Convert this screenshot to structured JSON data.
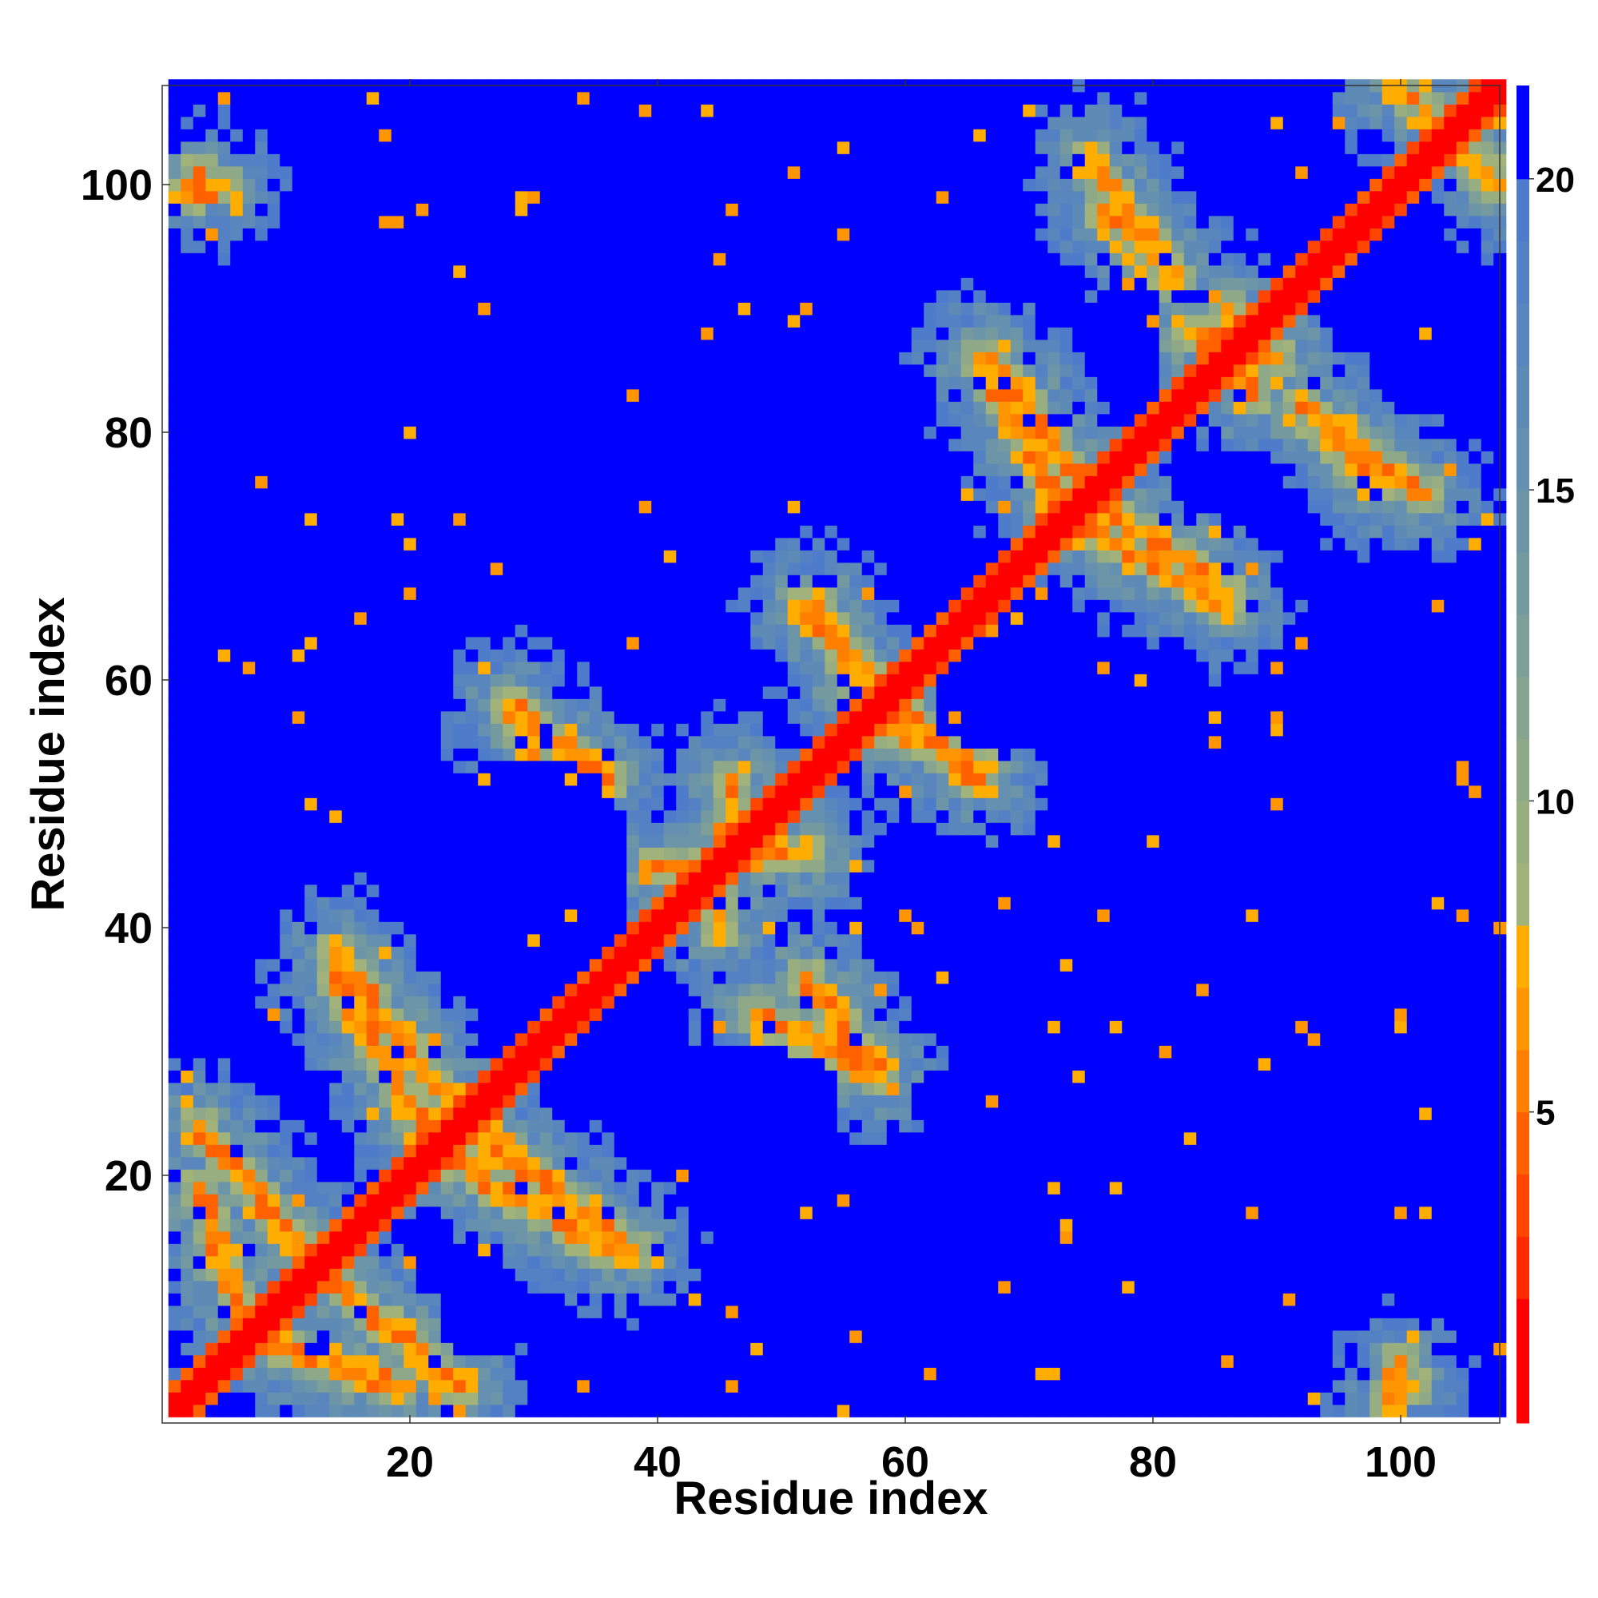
{
  "chart_data": {
    "type": "heatmap",
    "title": "",
    "xlabel": "Residue index",
    "ylabel": "Residue index",
    "n_residues": 108,
    "xlim": [
      1,
      108
    ],
    "ylim": [
      1,
      108
    ],
    "x_ticks": [
      20,
      40,
      60,
      80,
      100
    ],
    "y_ticks": [
      20,
      40,
      60,
      80,
      100
    ],
    "colorbar": {
      "ticks": [
        5,
        10,
        15,
        20
      ],
      "range": [
        0,
        21.5
      ],
      "levels": [
        {
          "max": 2,
          "color": "#ff0000"
        },
        {
          "max": 3,
          "color": "#ff2a00"
        },
        {
          "max": 4,
          "color": "#ff4500"
        },
        {
          "max": 5,
          "color": "#ff6000"
        },
        {
          "max": 6,
          "color": "#ff7f00"
        },
        {
          "max": 7,
          "color": "#ff9500"
        },
        {
          "max": 8,
          "color": "#ffad00"
        },
        {
          "max": 9,
          "color": "#a2b27b"
        },
        {
          "max": 10,
          "color": "#98ad80"
        },
        {
          "max": 11,
          "color": "#8fa988"
        },
        {
          "max": 12,
          "color": "#86a48f"
        },
        {
          "max": 13,
          "color": "#7d9f98"
        },
        {
          "max": 14,
          "color": "#749aa0"
        },
        {
          "max": 15,
          "color": "#6c95a8"
        },
        {
          "max": 16,
          "color": "#6590af"
        },
        {
          "max": 17,
          "color": "#5e8bb6"
        },
        {
          "max": 18,
          "color": "#5886bd"
        },
        {
          "max": 19,
          "color": "#5381c4"
        },
        {
          "max": 20,
          "color": "#4e7cca"
        },
        {
          "max": 21.5,
          "color": "#0000ff"
        }
      ]
    },
    "contact_segments": [
      {
        "a": [
          3,
          24
        ],
        "b": [
          13,
          12
        ]
      },
      {
        "a": [
          7,
          7
        ],
        "b": [
          19,
          3
        ]
      },
      {
        "a": [
          14,
          38
        ],
        "b": [
          23,
          26
        ]
      },
      {
        "a": [
          22,
          22
        ],
        "b": [
          36,
          14
        ]
      },
      {
        "a": [
          28,
          58
        ],
        "b": [
          33,
          48
        ]
      },
      {
        "a": [
          40,
          45
        ],
        "b": [
          52,
          46
        ]
      },
      {
        "a": [
          52,
          36
        ],
        "b": [
          58,
          28
        ]
      },
      {
        "a": [
          53,
          66
        ],
        "b": [
          57,
          57
        ]
      },
      {
        "a": [
          60,
          57
        ],
        "b": [
          66,
          52
        ]
      },
      {
        "a": [
          67,
          86
        ],
        "b": [
          75,
          75
        ]
      },
      {
        "a": [
          75,
          72
        ],
        "b": [
          86,
          66
        ]
      },
      {
        "a": [
          76,
          98
        ],
        "b": [
          82,
          92
        ]
      },
      {
        "a": [
          83,
          88
        ],
        "b": [
          90,
          86
        ]
      },
      {
        "a": [
          92,
          82
        ],
        "b": [
          102,
          75
        ]
      },
      {
        "a": [
          100,
          108
        ],
        "b": [
          108,
          100
        ]
      },
      {
        "a": [
          99,
          2
        ],
        "b": [
          101,
          3
        ]
      },
      {
        "a": [
          2,
          99
        ],
        "b": [
          5,
          100
        ]
      }
    ],
    "blue_voids": [
      {
        "cx": 30,
        "cy": 45,
        "rx": 8,
        "ry": 9
      },
      {
        "cx": 45,
        "cy": 26,
        "rx": 10,
        "ry": 5
      },
      {
        "cx": 73,
        "cy": 26,
        "rx": 13,
        "ry": 4
      },
      {
        "cx": 97,
        "cy": 26,
        "rx": 9,
        "ry": 4
      },
      {
        "cx": 83,
        "cy": 45,
        "rx": 5,
        "ry": 7
      },
      {
        "cx": 98,
        "cy": 48,
        "rx": 8,
        "ry": 8
      },
      {
        "cx": 86,
        "cy": 76,
        "rx": 5,
        "ry": 3
      },
      {
        "cx": 78,
        "cy": 87,
        "rx": 3,
        "ry": 6
      },
      {
        "cx": 102,
        "cy": 87,
        "rx": 5,
        "ry": 6
      },
      {
        "cx": 45,
        "cy": 80,
        "rx": 8,
        "ry": 5
      },
      {
        "cx": 8,
        "cy": 50,
        "rx": 5,
        "ry": 6
      },
      {
        "cx": 28,
        "cy": 78,
        "rx": 4,
        "ry": 6
      },
      {
        "cx": 12,
        "cy": 88,
        "rx": 6,
        "ry": 5
      },
      {
        "cx": 27,
        "cy": 92,
        "rx": 5,
        "ry": 5
      },
      {
        "cx": 42,
        "cy": 104,
        "rx": 7,
        "ry": 4
      },
      {
        "cx": 60,
        "cy": 103,
        "rx": 5,
        "ry": 4
      },
      {
        "cx": 88,
        "cy": 104,
        "rx": 6,
        "ry": 4
      },
      {
        "cx": 25,
        "cy": 10,
        "rx": 3,
        "ry": 5
      },
      {
        "cx": 45,
        "cy": 5,
        "rx": 8,
        "ry": 5
      },
      {
        "cx": 70,
        "cy": 6,
        "rx": 8,
        "ry": 5
      },
      {
        "cx": 88,
        "cy": 10,
        "rx": 6,
        "ry": 4
      },
      {
        "cx": 68,
        "cy": 58,
        "rx": 6,
        "ry": 4
      },
      {
        "cx": 62,
        "cy": 40,
        "rx": 4,
        "ry": 4
      }
    ]
  }
}
